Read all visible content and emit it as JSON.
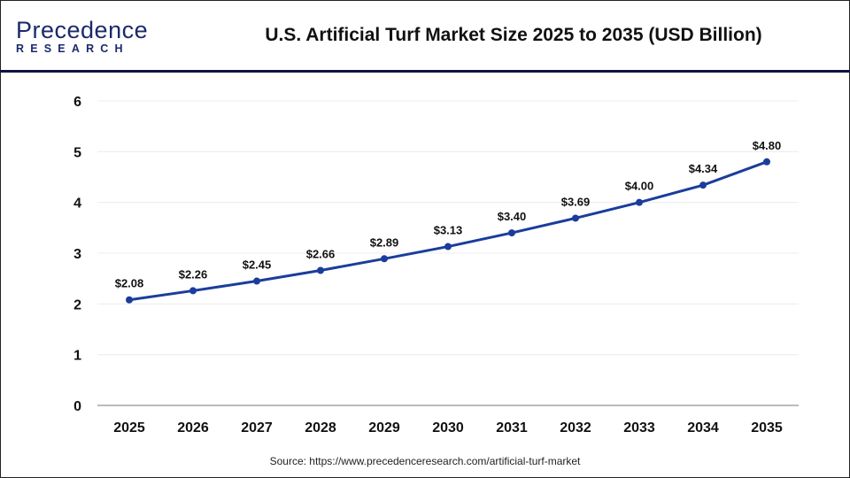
{
  "logo": {
    "line1": "Precedence",
    "line2": "RESEARCH"
  },
  "title": "U.S. Artificial Turf Market Size 2025 to 2035 (USD Billion)",
  "source": "Source: https://www.precedenceresearch.com/artificial-turf-market",
  "chart_data": {
    "type": "line",
    "title": "U.S. Artificial Turf Market Size 2025 to 2035 (USD Billion)",
    "categories": [
      "2025",
      "2026",
      "2027",
      "2028",
      "2029",
      "2030",
      "2031",
      "2032",
      "2033",
      "2034",
      "2035"
    ],
    "values": [
      2.08,
      2.26,
      2.45,
      2.66,
      2.89,
      3.13,
      3.4,
      3.69,
      4.0,
      4.34,
      4.8
    ],
    "data_labels": [
      "$2.08",
      "$2.26",
      "$2.45",
      "$2.66",
      "$2.89",
      "$3.13",
      "$3.40",
      "$3.69",
      "$4.00",
      "$4.34",
      "$4.80"
    ],
    "yticks": [
      "0",
      "1",
      "2",
      "3",
      "4",
      "5",
      "6"
    ],
    "ylim": [
      0,
      6
    ],
    "grid": true,
    "line_color": "#1a3d9c"
  }
}
